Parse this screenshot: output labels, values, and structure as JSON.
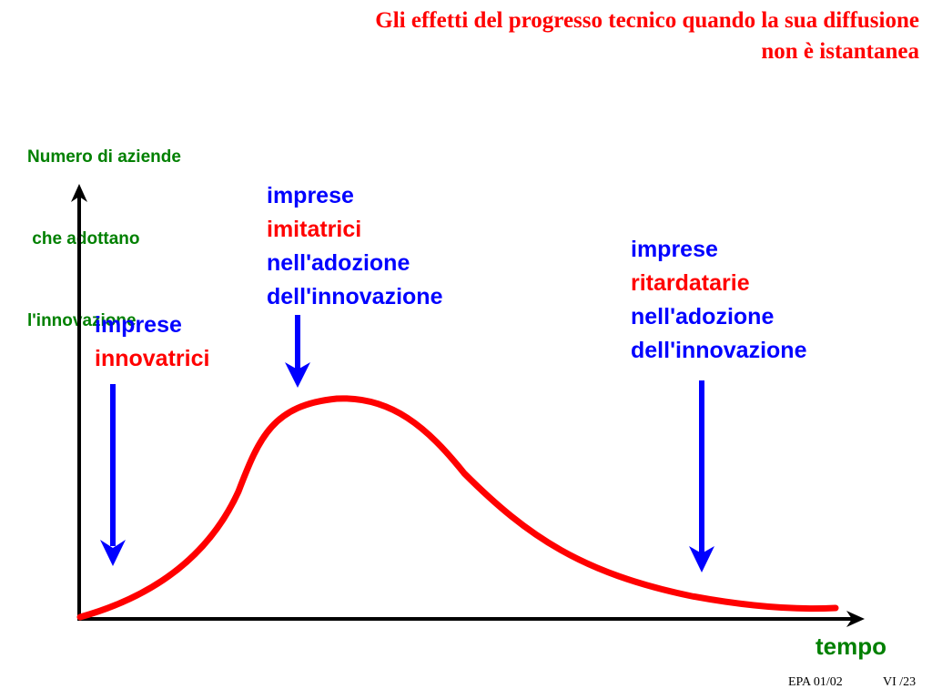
{
  "title": {
    "line1": "Gli effetti del progresso tecnico quando la sua diffusione",
    "line2": "non è istantanea"
  },
  "y_axis_label": {
    "line1": "Numero di aziende",
    "line2": " che adottano",
    "line3": "l'innovazione"
  },
  "x_axis_label": "tempo",
  "groups": {
    "innovatori": {
      "line1": "imprese",
      "line2": "innovatrici"
    },
    "imitatori": {
      "line1": "imprese",
      "line2": "imitatrici",
      "line3": "nell'adozione",
      "line4": "dell'innovazione"
    },
    "ritardatari": {
      "line1": "imprese",
      "line2": "ritardatarie",
      "line3": "nell'adozione",
      "line4": "dell'innovazione"
    }
  },
  "footer": {
    "left": "EPA 01/02",
    "right": "VI /23"
  },
  "colors": {
    "title": "#ff0000",
    "axis_labels": "#008000",
    "group_text": "#0000ff",
    "group_highlight": "#ff0000",
    "curve": "#ff0000",
    "arrows": "#0000ff",
    "axes": "#000000"
  }
}
